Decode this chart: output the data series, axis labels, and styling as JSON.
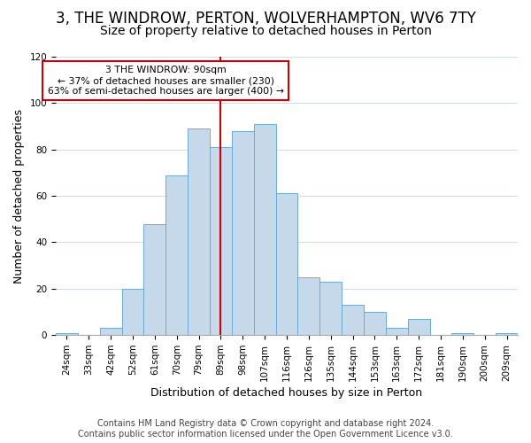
{
  "title": "3, THE WINDROW, PERTON, WOLVERHAMPTON, WV6 7TY",
  "subtitle": "Size of property relative to detached houses in Perton",
  "xlabel": "Distribution of detached houses by size in Perton",
  "ylabel": "Number of detached properties",
  "bar_labels": [
    "24sqm",
    "33sqm",
    "42sqm",
    "52sqm",
    "61sqm",
    "70sqm",
    "79sqm",
    "89sqm",
    "98sqm",
    "107sqm",
    "116sqm",
    "126sqm",
    "135sqm",
    "144sqm",
    "153sqm",
    "163sqm",
    "172sqm",
    "181sqm",
    "190sqm",
    "200sqm",
    "209sqm"
  ],
  "bar_heights": [
    1,
    0,
    3,
    20,
    48,
    69,
    89,
    81,
    88,
    91,
    61,
    25,
    23,
    13,
    10,
    3,
    7,
    0,
    1,
    0,
    1
  ],
  "bar_color": "#c5d9ea",
  "bar_edge_color": "#6aaad4",
  "grid_color": "#d0dce8",
  "vline_x_index": 7,
  "vline_color": "#cc0000",
  "annotation_lines": [
    "3 THE WINDROW: 90sqm",
    "← 37% of detached houses are smaller (230)",
    "63% of semi-detached houses are larger (400) →"
  ],
  "annotation_box_edge": "#cc0000",
  "ylim": [
    0,
    120
  ],
  "yticks": [
    0,
    20,
    40,
    60,
    80,
    100,
    120
  ],
  "footer_line1": "Contains HM Land Registry data © Crown copyright and database right 2024.",
  "footer_line2": "Contains public sector information licensed under the Open Government Licence v3.0.",
  "title_fontsize": 12,
  "subtitle_fontsize": 10,
  "axis_label_fontsize": 9,
  "tick_fontsize": 7.5,
  "footer_fontsize": 7
}
